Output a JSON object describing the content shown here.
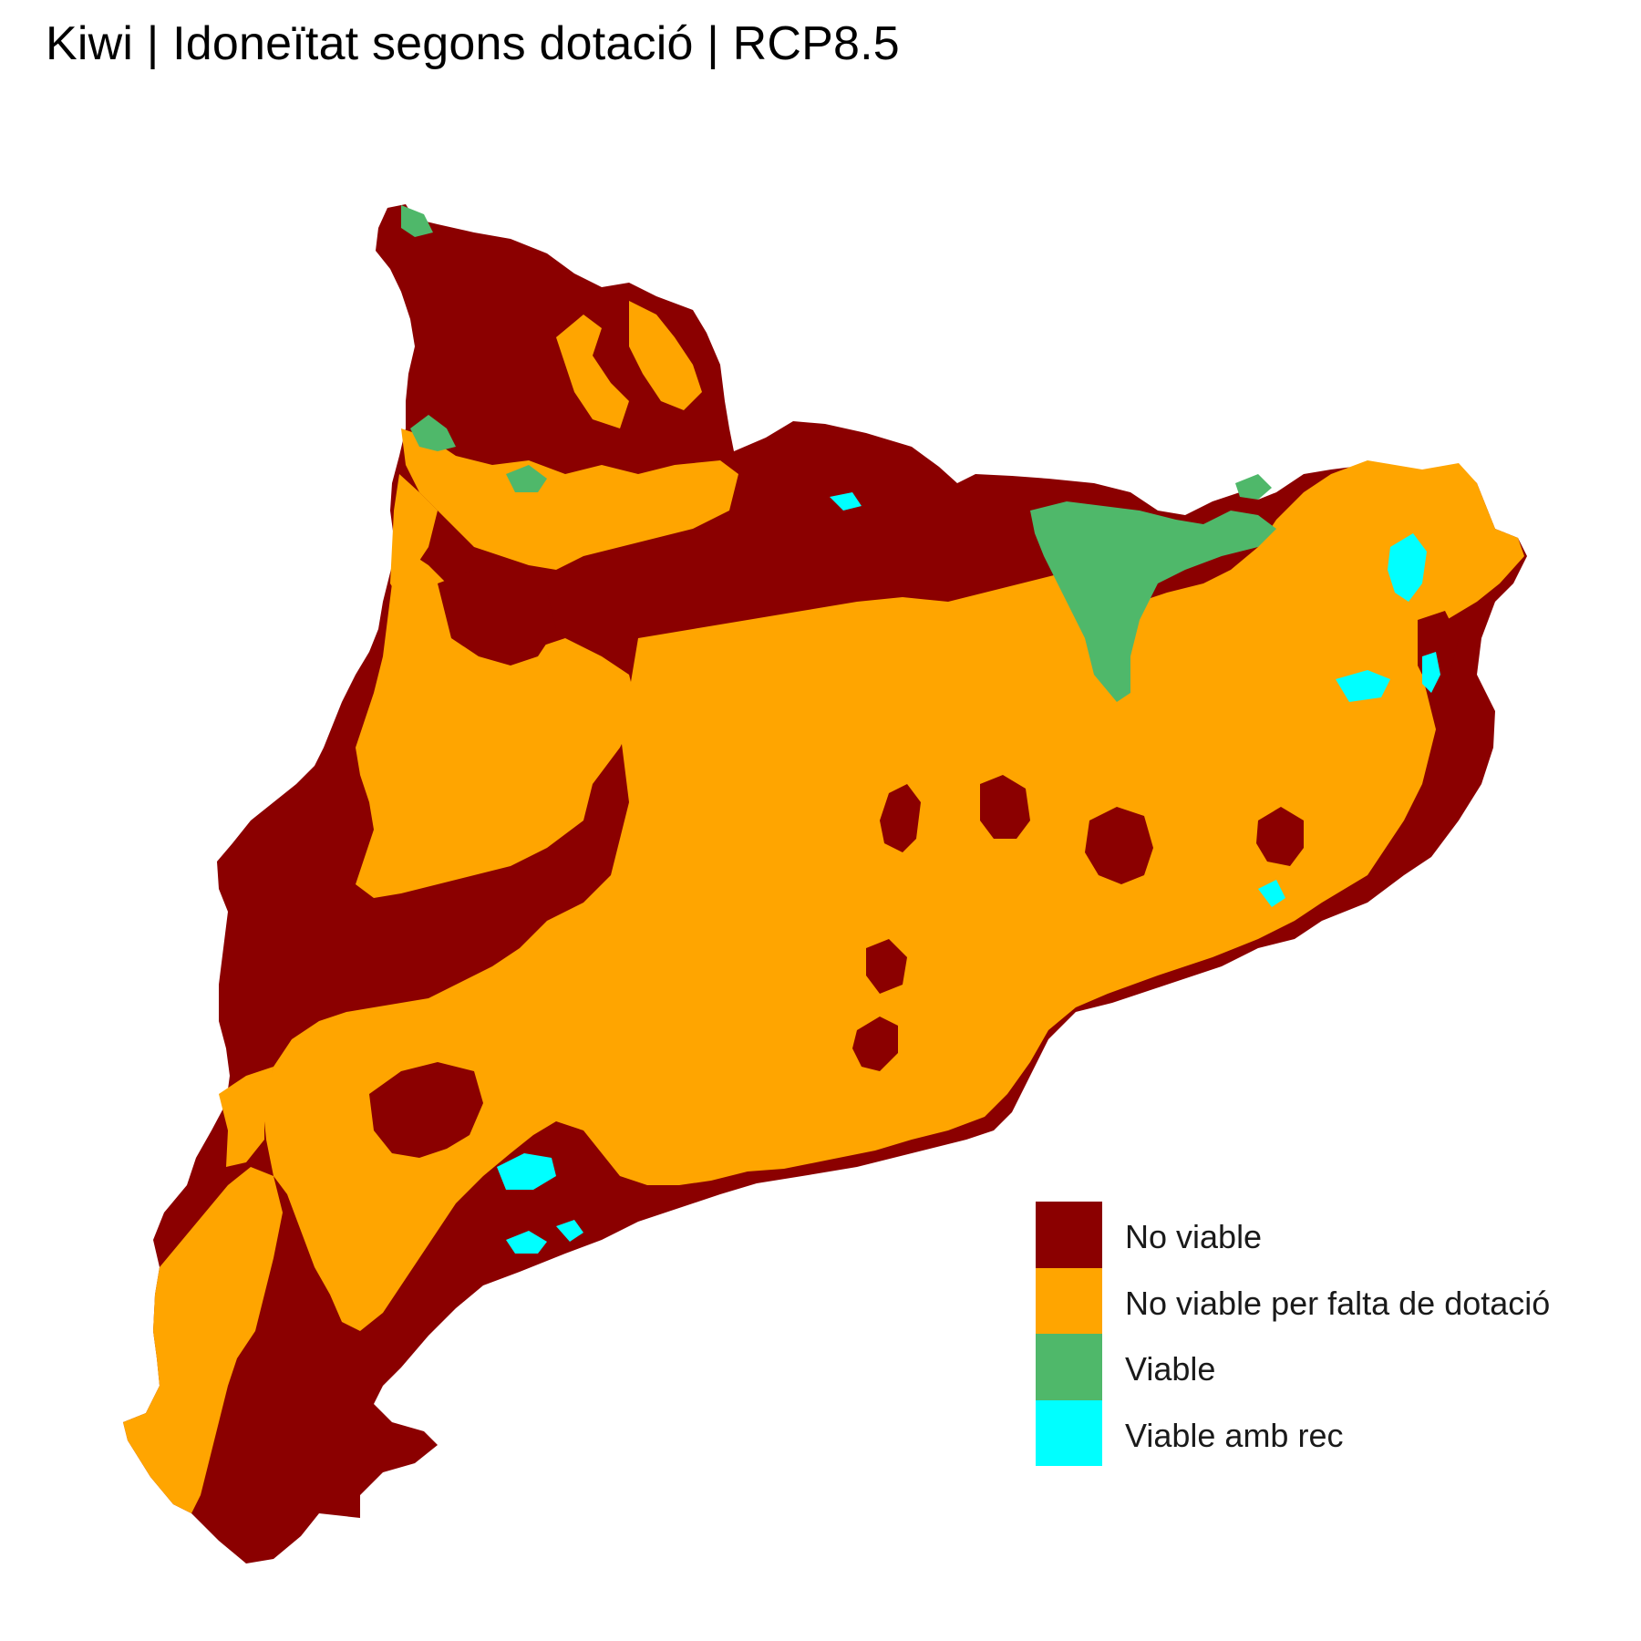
{
  "title": "Kiwi | Idoneïtat segons dotació | RCP8.5",
  "legend": {
    "items": [
      {
        "label": "No viable",
        "color": "#8B0000"
      },
      {
        "label": "No viable per falta de dotació",
        "color": "#FFA500"
      },
      {
        "label": "Viable",
        "color": "#4FB86A"
      },
      {
        "label": "Viable amb rec",
        "color": "#00FFFF"
      }
    ]
  }
}
